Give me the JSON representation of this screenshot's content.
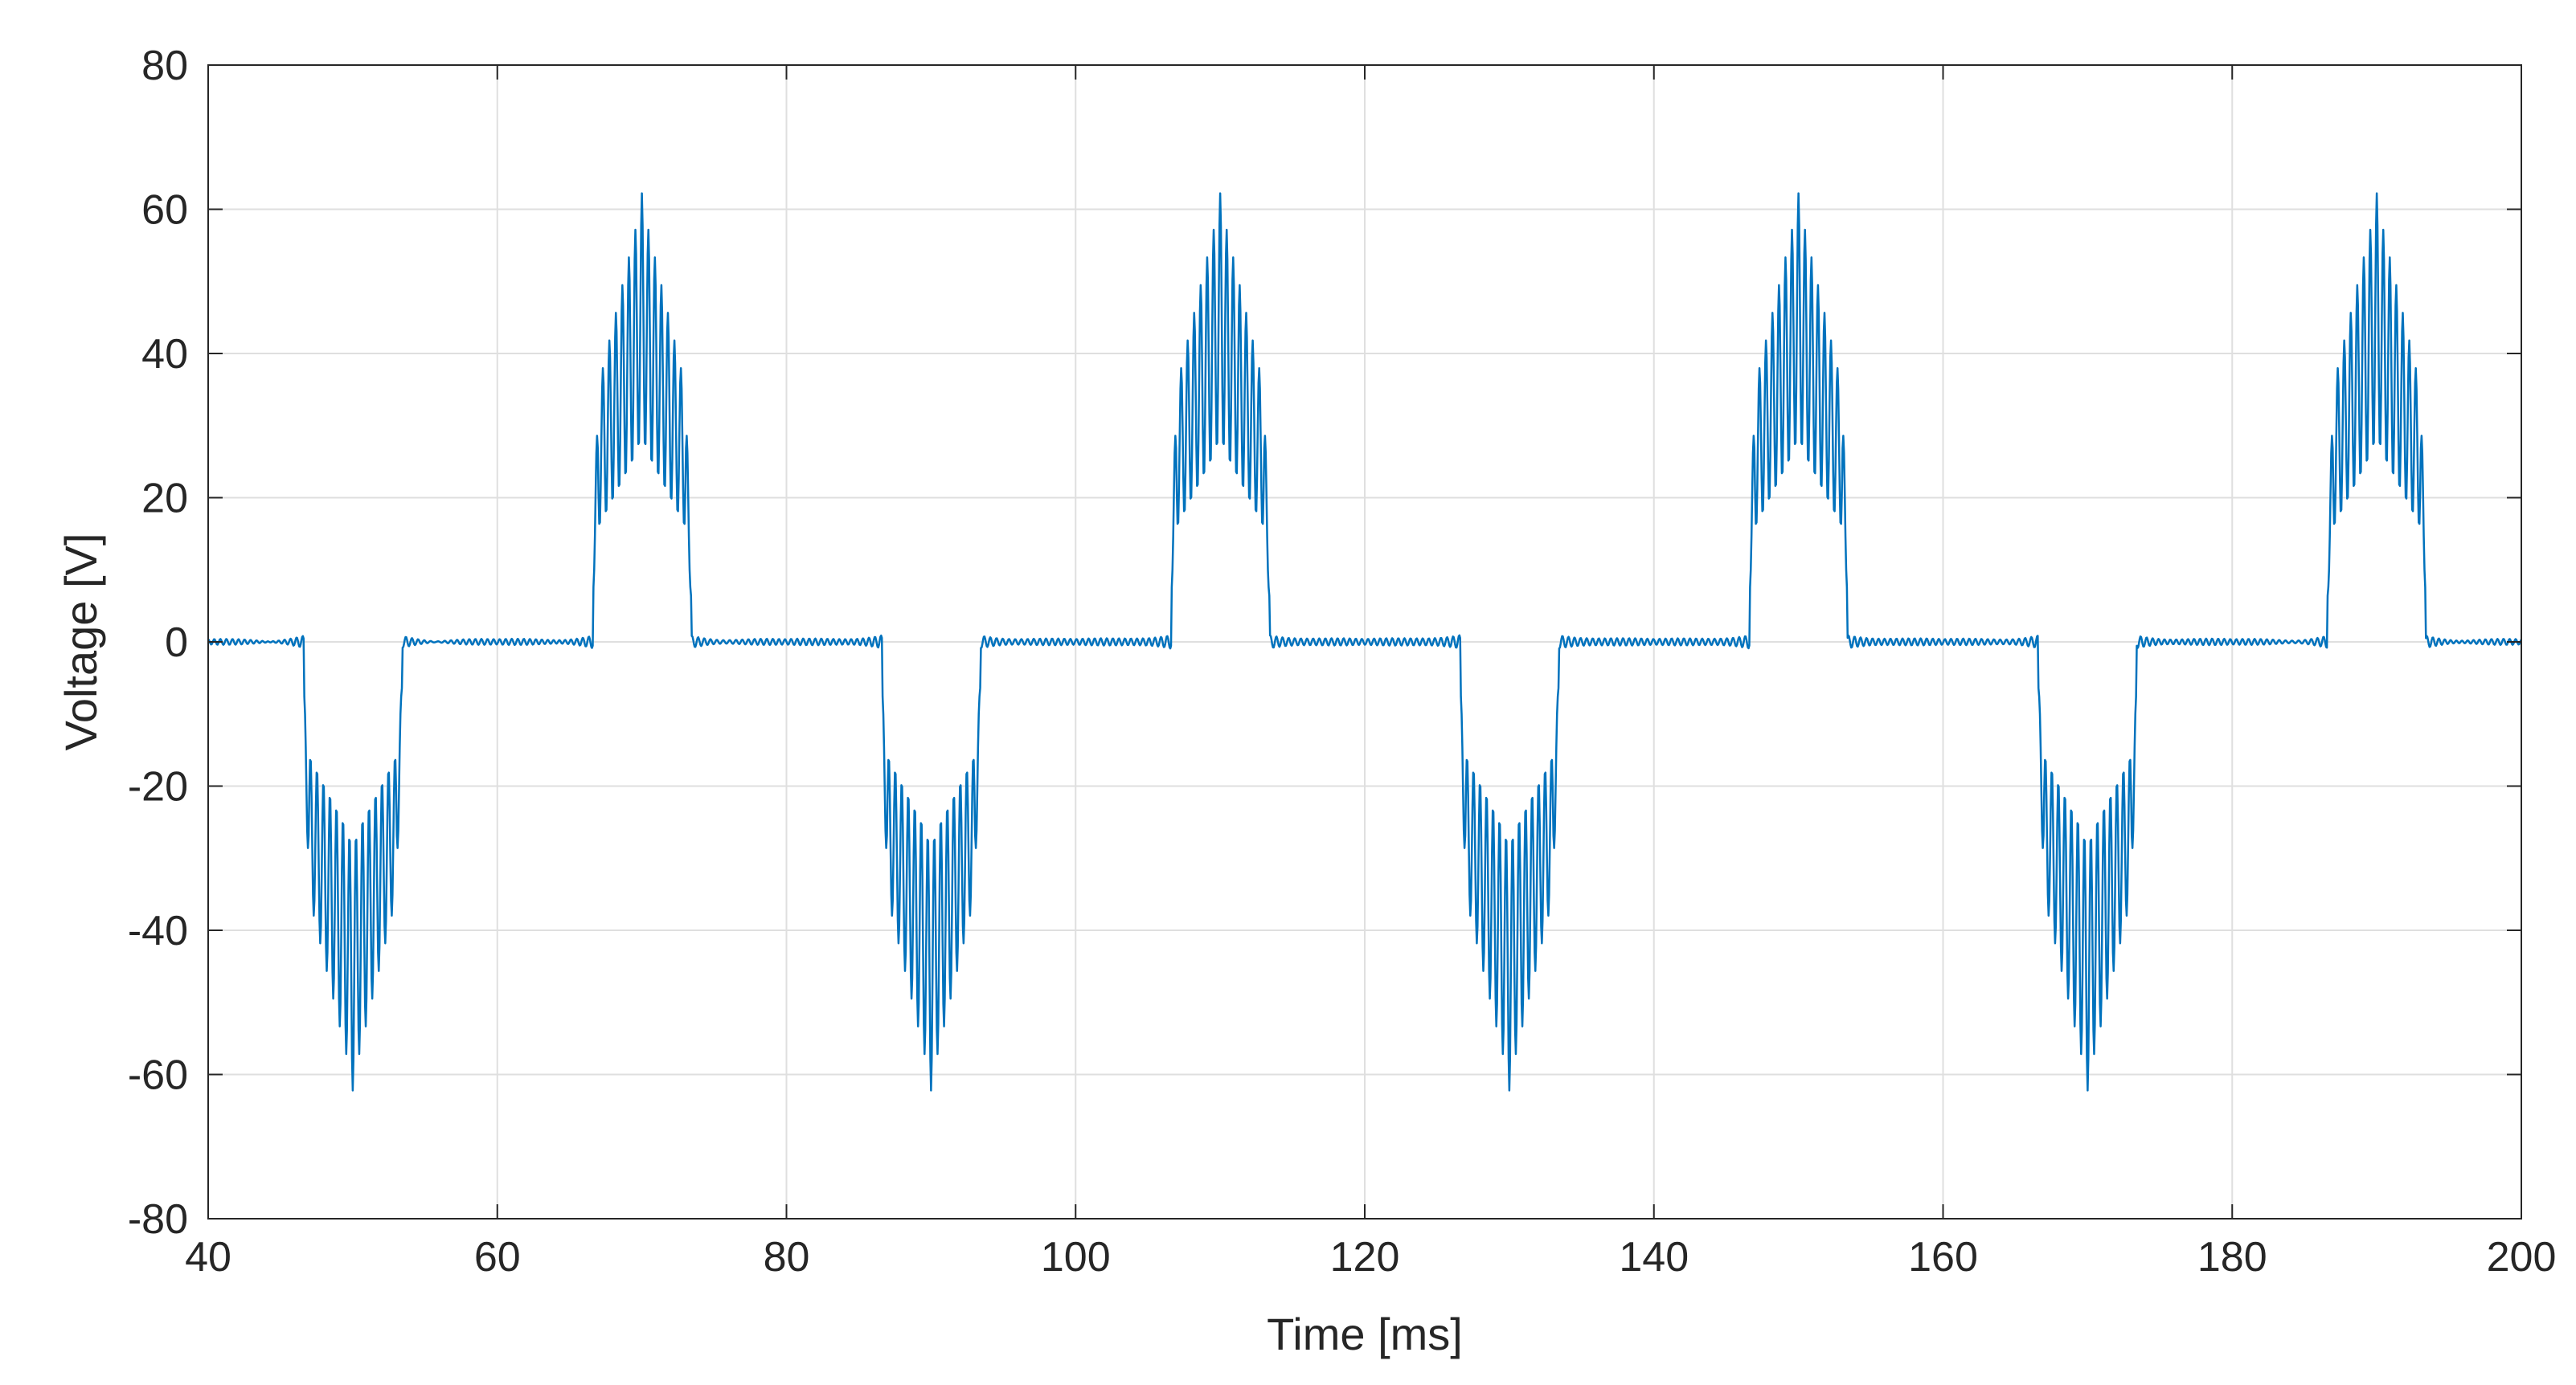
{
  "chart_data": {
    "type": "line",
    "title": "",
    "xlabel": "Time [ms]",
    "ylabel": "Voltage [V]",
    "xlim": [
      40,
      200
    ],
    "ylim": [
      -80,
      80
    ],
    "xticks": [
      40,
      60,
      80,
      100,
      120,
      140,
      160,
      180,
      200
    ],
    "yticks": [
      -80,
      -60,
      -40,
      -20,
      0,
      20,
      40,
      60,
      80
    ],
    "grid": true,
    "legend": "none",
    "series": [
      {
        "name": "Voltage",
        "color": "#0072BD",
        "pulse_period_ms": 20,
        "pulse_polarity_start": "negative",
        "pulse_centers_ms": [
          50,
          70,
          90,
          110,
          130,
          150,
          170,
          190
        ],
        "pulse_peak_amplitude": 61,
        "pulse_edge_voltage": 32,
        "pulse_halfwidth_ms": 3.4,
        "points": [
          [
            40,
            0
          ],
          [
            46.4,
            0
          ],
          [
            46.8,
            -15
          ],
          [
            47.1,
            -32
          ],
          [
            48.0,
            -40
          ],
          [
            49.0,
            -48
          ],
          [
            50.0,
            -61
          ],
          [
            51.0,
            -48
          ],
          [
            52.0,
            -40
          ],
          [
            52.9,
            -32
          ],
          [
            53.2,
            -15
          ],
          [
            53.6,
            0
          ],
          [
            66.4,
            0
          ],
          [
            66.8,
            15
          ],
          [
            67.1,
            32
          ],
          [
            68.0,
            40
          ],
          [
            69.0,
            48
          ],
          [
            70.0,
            61
          ],
          [
            71.0,
            48
          ],
          [
            72.0,
            40
          ],
          [
            72.9,
            32
          ],
          [
            73.2,
            15
          ],
          [
            73.6,
            0
          ],
          [
            86.4,
            0
          ],
          [
            86.8,
            -15
          ],
          [
            87.1,
            -32
          ],
          [
            88.0,
            -40
          ],
          [
            89.0,
            -48
          ],
          [
            90.0,
            -61
          ],
          [
            91.0,
            -48
          ],
          [
            92.0,
            -40
          ],
          [
            92.9,
            -32
          ],
          [
            93.2,
            -15
          ],
          [
            93.6,
            0
          ],
          [
            106.4,
            0
          ],
          [
            106.8,
            15
          ],
          [
            107.1,
            32
          ],
          [
            108.0,
            40
          ],
          [
            109.0,
            48
          ],
          [
            110.0,
            61
          ],
          [
            111.0,
            48
          ],
          [
            112.0,
            40
          ],
          [
            112.9,
            32
          ],
          [
            113.2,
            15
          ],
          [
            113.6,
            0
          ],
          [
            126.4,
            0
          ],
          [
            126.8,
            -15
          ],
          [
            127.1,
            -32
          ],
          [
            128.0,
            -40
          ],
          [
            129.0,
            -48
          ],
          [
            130.0,
            -61
          ],
          [
            131.0,
            -48
          ],
          [
            132.0,
            -40
          ],
          [
            132.9,
            -32
          ],
          [
            133.2,
            -15
          ],
          [
            133.6,
            0
          ],
          [
            146.4,
            0
          ],
          [
            146.8,
            15
          ],
          [
            147.1,
            32
          ],
          [
            148.0,
            40
          ],
          [
            149.0,
            48
          ],
          [
            150.0,
            61
          ],
          [
            151.0,
            48
          ],
          [
            152.0,
            40
          ],
          [
            152.9,
            32
          ],
          [
            153.2,
            15
          ],
          [
            153.6,
            0
          ],
          [
            166.4,
            0
          ],
          [
            166.8,
            -15
          ],
          [
            167.1,
            -32
          ],
          [
            168.0,
            -40
          ],
          [
            169.0,
            -48
          ],
          [
            170.0,
            -61
          ],
          [
            171.0,
            -48
          ],
          [
            172.0,
            -40
          ],
          [
            172.9,
            -32
          ],
          [
            173.2,
            -15
          ],
          [
            173.6,
            0
          ],
          [
            186.4,
            0
          ],
          [
            186.8,
            15
          ],
          [
            187.1,
            32
          ],
          [
            188.0,
            40
          ],
          [
            189.0,
            48
          ],
          [
            190.0,
            61
          ],
          [
            191.0,
            48
          ],
          [
            192.0,
            40
          ],
          [
            192.9,
            32
          ],
          [
            193.2,
            15
          ],
          [
            193.6,
            0
          ],
          [
            200,
            0
          ]
        ]
      }
    ]
  }
}
